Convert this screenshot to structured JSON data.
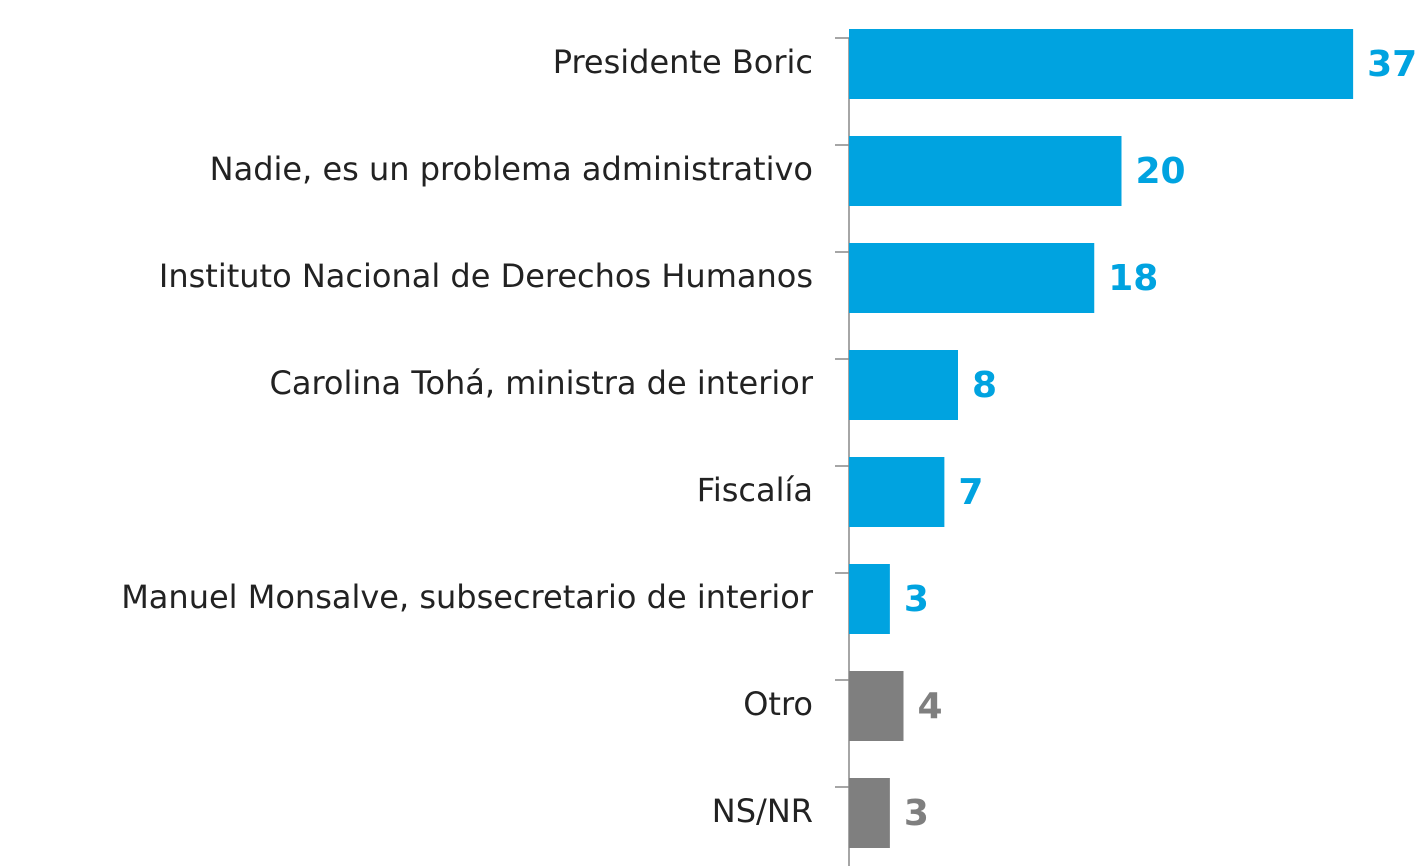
{
  "chart_data": {
    "type": "bar",
    "orientation": "horizontal",
    "categories": [
      "Presidente Boric",
      "Nadie, es un problema administrativo",
      "Instituto Nacional de Derechos Humanos",
      "Carolina Tohá, ministra de interior",
      "Fiscalía",
      "Manuel Monsalve, subsecretario de interior",
      "Otro",
      "NS/NR"
    ],
    "values": [
      37,
      20,
      18,
      8,
      7,
      3,
      4,
      3
    ],
    "colors": [
      "#00a3e0",
      "#00a3e0",
      "#00a3e0",
      "#00a3e0",
      "#00a3e0",
      "#00a3e0",
      "#7f7f7f",
      "#7f7f7f"
    ],
    "xlim": [
      0,
      40
    ]
  }
}
